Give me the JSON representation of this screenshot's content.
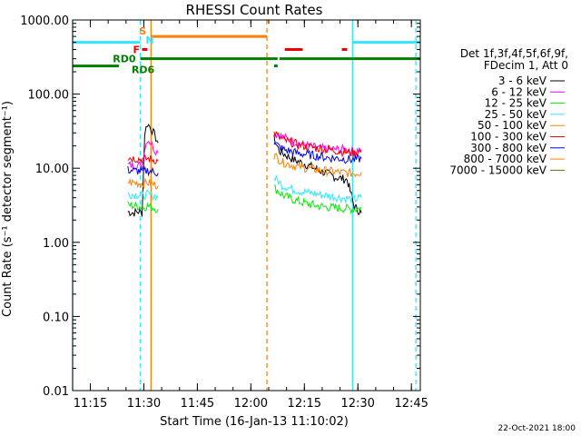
{
  "colors": {
    "cyan": "#33e5ff",
    "orange": "#ff7f00",
    "red": "#ee0000",
    "green": "#007f00",
    "magenta": "#ff00ff",
    "bright_green": "#00ee00",
    "blue": "#0000ee",
    "olive": "#6b6b00",
    "black": "#000000"
  },
  "chart_data": {
    "type": "line",
    "title": "RHESSI Count Rates",
    "xlabel": "Start Time (16-Jan-13 11:10:02)",
    "ylabel": "Count Rate (s⁻¹ detector segment⁻¹)",
    "yscale": "log",
    "ylim": [
      0.01,
      1000
    ],
    "xlim": [
      "11:10:02",
      "12:47:30"
    ],
    "x_ticks": [
      "11:15",
      "11:30",
      "11:45",
      "12:00",
      "12:15",
      "12:30",
      "12:45"
    ],
    "y_ticks": [
      "0.01",
      "0.10",
      "1.00",
      "10.00",
      "100.00",
      "1000.00"
    ],
    "legend": {
      "header": [
        "Det 1f,3f,4f,5f,6f,9f,",
        "FDecim 1, Att 0"
      ],
      "placement": "right"
    },
    "series": [
      {
        "name": "3 - 6 keV",
        "color": "#000000",
        "segments": [
          {
            "x": [
              "11:25:30",
              "11:27",
              "11:28:30",
              "11:29:30",
              "11:30:15",
              "11:31",
              "11:32",
              "11:33",
              "11:34"
            ],
            "y": [
              2.6,
              2.5,
              2.6,
              2.5,
              30,
              40,
              35,
              28,
              22
            ]
          },
          {
            "x": [
              "12:06:30",
              "12:08",
              "12:12",
              "12:16",
              "12:20",
              "12:24",
              "12:27",
              "12:29",
              "12:31"
            ],
            "y": [
              25,
              17,
              13,
              11,
              9,
              7.5,
              7,
              3,
              2.5
            ]
          }
        ]
      },
      {
        "name": "6 - 12 keV",
        "color": "#ff00ff",
        "segments": [
          {
            "x": [
              "11:25:30",
              "11:28",
              "11:29:30",
              "11:30:15",
              "11:31",
              "11:32",
              "11:33",
              "11:34"
            ],
            "y": [
              11,
              11,
              11,
              18,
              25,
              22,
              18,
              16
            ]
          },
          {
            "x": [
              "12:06:30",
              "12:10",
              "12:14",
              "12:18",
              "12:22",
              "12:26",
              "12:29",
              "12:31"
            ],
            "y": [
              30,
              25,
              21,
              19,
              18,
              18,
              17,
              18
            ]
          }
        ]
      },
      {
        "name": "12 - 25 keV",
        "color": "#00ee00",
        "segments": [
          {
            "x": [
              "11:25:30",
              "11:28",
              "11:30",
              "11:31",
              "11:33",
              "11:34"
            ],
            "y": [
              3.2,
              3.1,
              3.0,
              3.1,
              2.9,
              2.8
            ]
          },
          {
            "x": [
              "12:06:30",
              "12:09",
              "12:13",
              "12:17",
              "12:21",
              "12:25",
              "12:29",
              "12:31"
            ],
            "y": [
              5.5,
              4.3,
              3.6,
              3.2,
              3.0,
              2.9,
              2.8,
              2.9
            ]
          }
        ]
      },
      {
        "name": "25 - 50 keV",
        "color": "#33e5ff",
        "segments": [
          {
            "x": [
              "11:25:30",
              "11:28",
              "11:30",
              "11:31",
              "11:33",
              "11:34"
            ],
            "y": [
              4.5,
              4.4,
              4.3,
              4.4,
              4.2,
              4.0
            ]
          },
          {
            "x": [
              "12:06:30",
              "12:09",
              "12:13",
              "12:17",
              "12:21",
              "12:25",
              "12:29",
              "12:31"
            ],
            "y": [
              7.5,
              5.8,
              5.0,
              4.6,
              4.3,
              4.0,
              3.8,
              4.0
            ]
          }
        ]
      },
      {
        "name": "50 - 100 keV",
        "color": "#ff7f00",
        "segments": [
          {
            "x": [
              "11:25:30",
              "11:28",
              "11:30",
              "11:31",
              "11:33",
              "11:34"
            ],
            "y": [
              6.5,
              6.3,
              6.2,
              6.4,
              6.0,
              5.8
            ]
          },
          {
            "x": [
              "12:06:30",
              "12:09",
              "12:13",
              "12:17",
              "12:21",
              "12:25",
              "12:29",
              "12:31"
            ],
            "y": [
              15,
              12,
              10.5,
              9.8,
              9.2,
              8.8,
              8.5,
              8.8
            ]
          }
        ]
      },
      {
        "name": "100 - 300 keV",
        "color": "#ee0000",
        "segments": [
          {
            "x": [
              "11:25:30",
              "11:28",
              "11:30",
              "11:31",
              "11:33",
              "11:34"
            ],
            "y": [
              14,
              13.5,
              13,
              13.5,
              13,
              12.5
            ]
          },
          {
            "x": [
              "12:06:30",
              "12:09",
              "12:13",
              "12:17",
              "12:21",
              "12:25",
              "12:29",
              "12:31"
            ],
            "y": [
              30,
              24,
              21,
              19,
              18,
              17,
              16,
              17
            ]
          }
        ]
      },
      {
        "name": "300 - 800 keV",
        "color": "#0000ee",
        "segments": [
          {
            "x": [
              "11:25:30",
              "11:28",
              "11:30",
              "11:31",
              "11:33",
              "11:34"
            ],
            "y": [
              9.5,
              9.2,
              9.0,
              9.3,
              8.9,
              8.6
            ]
          },
          {
            "x": [
              "12:06:30",
              "12:09",
              "12:13",
              "12:17",
              "12:21",
              "12:25",
              "12:29",
              "12:31"
            ],
            "y": [
              22,
              18,
              16,
              15,
              14,
              13.5,
              13,
              13.5
            ]
          }
        ]
      },
      {
        "name": "800 - 7000 keV",
        "color": "#ff7f00",
        "segments": []
      },
      {
        "name": "7000 - 15000 keV",
        "color": "#6b6b00",
        "segments": []
      }
    ],
    "flag_bars": [
      {
        "label": "",
        "color": "#33e5ff",
        "start": "11:10:02",
        "end": "11:29:00",
        "value": 500
      },
      {
        "label": "",
        "color": "#33e5ff",
        "start": "12:28:30",
        "end": "12:47:30",
        "value": 500
      },
      {
        "label": "S",
        "color": "#ff7f00",
        "start": "11:32:00",
        "end": "12:04:30",
        "value": 600
      },
      {
        "label": "F",
        "color": "#ee0000",
        "start": "11:29:30",
        "end": "11:31:00",
        "value": 400
      },
      {
        "label": "",
        "color": "#ee0000",
        "start": "12:09:30",
        "end": "12:14:30",
        "value": 400
      },
      {
        "label": "",
        "color": "#ee0000",
        "start": "12:25:30",
        "end": "12:27:00",
        "value": 400
      },
      {
        "label": "RD0",
        "color": "#007f00",
        "start": "11:29:00",
        "end": "12:07:30",
        "value": 300
      },
      {
        "label": "",
        "color": "#007f00",
        "start": "12:08:00",
        "end": "12:47:30",
        "value": 300
      },
      {
        "label": "RD6",
        "color": "#007f00",
        "start": "11:10:02",
        "end": "11:23:00",
        "value": 240
      },
      {
        "label": "",
        "color": "#007f00",
        "start": "12:06:30",
        "end": "12:07:30",
        "value": 240
      }
    ],
    "flag_labels_extra": [
      {
        "label": "N",
        "color": "#33e5ff"
      }
    ],
    "vertical_lines": [
      {
        "x": "11:10:02",
        "color": "#33e5ff",
        "style": "solid"
      },
      {
        "x": "11:29:00",
        "color": "#33e5ff",
        "style": "dashed"
      },
      {
        "x": "11:32:00",
        "color": "#ff7f00",
        "style": "solid"
      },
      {
        "x": "12:04:30",
        "color": "#ff7f00",
        "style": "dashed"
      },
      {
        "x": "12:28:30",
        "color": "#33e5ff",
        "style": "solid"
      },
      {
        "x": "12:46:15",
        "color": "#33e5ff",
        "style": "dashed"
      }
    ],
    "grid": false
  },
  "footer": {
    "timestamp": "22-Oct-2021 18:00"
  }
}
